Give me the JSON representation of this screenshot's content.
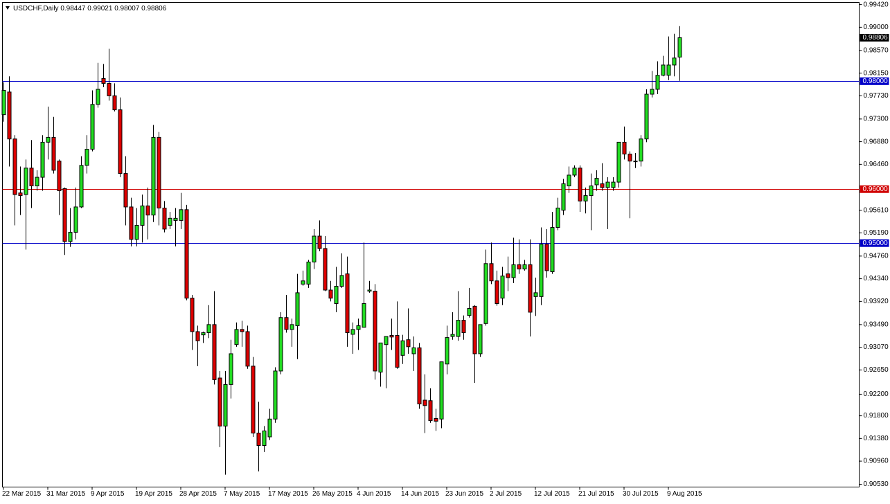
{
  "chart_data": {
    "type": "candlestick",
    "title": "USDCHF,Daily",
    "categories": [
      "22 Mar 2015",
      null,
      null,
      null,
      null,
      null,
      null,
      null,
      "31 Mar 2015",
      null,
      null,
      null,
      null,
      null,
      null,
      null,
      "9 Apr 2015",
      null,
      null,
      null,
      null,
      null,
      null,
      null,
      "19 Apr 2015",
      null,
      null,
      null,
      null,
      null,
      null,
      null,
      "28 Apr 2015",
      null,
      null,
      null,
      null,
      null,
      null,
      null,
      "7 May 2015",
      null,
      null,
      null,
      null,
      null,
      null,
      null,
      "17 May 2015",
      null,
      null,
      null,
      null,
      null,
      null,
      null,
      "26 May 2015",
      null,
      null,
      null,
      null,
      null,
      null,
      null,
      "4 Jun 2015",
      null,
      null,
      null,
      null,
      null,
      null,
      null,
      "14 Jun 2015",
      null,
      null,
      null,
      null,
      null,
      null,
      null,
      "23 Jun 2015",
      null,
      null,
      null,
      null,
      null,
      null,
      null,
      "2 Jul 2015",
      null,
      null,
      null,
      null,
      null,
      null,
      null,
      "12 Jul 2015",
      null,
      null,
      null,
      null,
      null,
      null,
      null,
      "21 Jul 2015",
      null,
      null,
      null,
      null,
      null,
      null,
      null,
      "30 Jul 2015",
      null,
      null,
      null,
      null,
      null,
      null,
      null,
      "9 Aug 2015",
      null,
      null
    ],
    "open": [
      0.9738,
      0.978,
      0.9693,
      0.9593,
      0.959,
      0.9639,
      0.9606,
      0.9622,
      0.9687,
      0.9696,
      0.9652,
      0.9601,
      0.9503,
      0.952,
      0.9567,
      0.9644,
      0.9674,
      0.9757,
      0.9805,
      0.9796,
      0.9773,
      0.9747,
      0.9629,
      0.9567,
      0.9507,
      0.9533,
      0.9569,
      0.9552,
      0.9696,
      0.9565,
      0.9533,
      0.9542,
      0.9542,
      0.9562,
      0.9398,
      0.9336,
      0.933,
      0.9334,
      0.9349,
      0.925,
      0.9161,
      0.9238,
      0.9312,
      0.934,
      0.9336,
      0.9272,
      0.9148,
      0.9125,
      0.9141,
      0.9174,
      0.9263,
      0.9362,
      0.934,
      0.9347,
      0.9424,
      0.9424,
      0.9465,
      0.9513,
      0.949,
      0.9413,
      0.9388,
      0.942,
      0.9443,
      0.9331,
      0.934,
      0.9344,
      0.9411,
      0.9411,
      0.9261,
      0.9312,
      0.9329,
      0.9329,
      0.9292,
      0.9321,
      0.9295,
      0.9306,
      0.9209,
      0.9208,
      0.9175,
      0.9174,
      0.9276,
      0.9327,
      0.9327,
      0.9357,
      0.9366,
      0.9383,
      0.9295,
      0.9351,
      0.9462,
      0.943,
      0.9398,
      0.9443,
      0.9436,
      0.946,
      0.9452,
      0.946,
      0.9401,
      0.9401,
      0.9498,
      0.9447,
      0.9529,
      0.9561,
      0.9606,
      0.9626,
      0.9639,
      0.9578,
      0.9588,
      0.9608,
      0.961,
      0.9603,
      0.9603,
      0.9613,
      0.9687,
      0.9665,
      0.9652,
      0.9652,
      0.9693,
      0.9776,
      0.9785,
      0.9811,
      0.9811,
      0.983,
      0.98447
    ],
    "high": [
      0.9798,
      0.9809,
      0.97,
      0.9642,
      0.9655,
      0.9691,
      0.9635,
      0.97,
      0.9753,
      0.9734,
      0.9655,
      0.9603,
      0.9565,
      0.9603,
      0.9661,
      0.97,
      0.9783,
      0.9834,
      0.9832,
      0.986,
      0.9796,
      0.977,
      0.9661,
      0.9584,
      0.9565,
      0.959,
      0.9603,
      0.9719,
      0.9706,
      0.9578,
      0.9558,
      0.9565,
      0.9593,
      0.9571,
      0.9404,
      0.9347,
      0.9336,
      0.9385,
      0.9411,
      0.9263,
      0.9263,
      0.9321,
      0.9353,
      0.9356,
      0.9347,
      0.9289,
      0.9206,
      0.9161,
      0.9193,
      0.927,
      0.9372,
      0.9404,
      0.936,
      0.9443,
      0.9449,
      0.9469,
      0.9526,
      0.9542,
      0.9513,
      0.943,
      0.9456,
      0.9481,
      0.9475,
      0.9353,
      0.936,
      0.9501,
      0.943,
      0.9424,
      0.9315,
      0.9327,
      0.936,
      0.9392,
      0.933,
      0.9379,
      0.9327,
      0.9315,
      0.9257,
      0.9231,
      0.9193,
      0.928,
      0.9347,
      0.9372,
      0.9411,
      0.9366,
      0.9417,
      0.9385,
      0.9349,
      0.9488,
      0.9501,
      0.9449,
      0.9456,
      0.9475,
      0.951,
      0.9507,
      0.9469,
      0.9507,
      0.9436,
      0.9529,
      0.9526,
      0.9558,
      0.9584,
      0.9619,
      0.9642,
      0.9644,
      0.9644,
      0.9603,
      0.9629,
      0.9635,
      0.9648,
      0.9622,
      0.9622,
      0.9687,
      0.9716,
      0.967,
      0.9667,
      0.97,
      0.9785,
      0.9819,
      0.9837,
      0.9847,
      0.9883,
      0.9888,
      0.99021
    ],
    "low": [
      0.9725,
      0.9642,
      0.9533,
      0.9552,
      0.9488,
      0.9565,
      0.9597,
      0.9597,
      0.9655,
      0.9629,
      0.9552,
      0.9478,
      0.9493,
      0.9507,
      0.9565,
      0.9629,
      0.967,
      0.9751,
      0.9789,
      0.9764,
      0.9744,
      0.9622,
      0.9533,
      0.9494,
      0.9494,
      0.9501,
      0.9507,
      0.9539,
      0.9533,
      0.952,
      0.9526,
      0.9494,
      0.9526,
      0.9394,
      0.9302,
      0.9272,
      0.9315,
      0.9324,
      0.9238,
      0.9122,
      0.9071,
      0.9212,
      0.9308,
      0.9308,
      0.9267,
      0.9141,
      0.9077,
      0.9113,
      0.9135,
      0.9167,
      0.9257,
      0.9334,
      0.9308,
      0.9285,
      0.9421,
      0.9417,
      0.9452,
      0.9485,
      0.9411,
      0.9392,
      0.9372,
      0.9417,
      0.9308,
      0.9295,
      0.9302,
      0.9344,
      0.9408,
      0.9247,
      0.9234,
      0.9231,
      0.9302,
      0.9267,
      0.9276,
      0.9295,
      0.9263,
      0.9193,
      0.9148,
      0.9167,
      0.9152,
      0.9157,
      0.9257,
      0.9321,
      0.9319,
      0.9321,
      0.9362,
      0.9241,
      0.9289,
      0.9347,
      0.9424,
      0.9384,
      0.9385,
      0.9411,
      0.9426,
      0.9443,
      0.9449,
      0.9327,
      0.9365,
      0.9385,
      0.9436,
      0.9443,
      0.9524,
      0.9552,
      0.9593,
      0.9622,
      0.9558,
      0.9555,
      0.9524,
      0.9597,
      0.9597,
      0.9526,
      0.9597,
      0.9603,
      0.9655,
      0.9546,
      0.9639,
      0.9642,
      0.9687,
      0.977,
      0.9776,
      0.9809,
      0.9802,
      0.9809,
      0.98007
    ],
    "close": [
      0.9783,
      0.9693,
      0.959,
      0.9588,
      0.9639,
      0.9606,
      0.9622,
      0.9687,
      0.9696,
      0.9635,
      0.9597,
      0.9503,
      0.952,
      0.9567,
      0.9644,
      0.9674,
      0.9757,
      0.9785,
      0.9796,
      0.9773,
      0.9747,
      0.9629,
      0.9567,
      0.9507,
      0.9533,
      0.9569,
      0.9552,
      0.9696,
      0.9565,
      0.9526,
      0.9546,
      0.9546,
      0.9562,
      0.9398,
      0.9336,
      0.9319,
      0.9334,
      0.9349,
      0.9247,
      0.9161,
      0.9238,
      0.9295,
      0.934,
      0.9336,
      0.9272,
      0.9148,
      0.9125,
      0.9152,
      0.9174,
      0.9263,
      0.9362,
      0.934,
      0.9349,
      0.9408,
      0.943,
      0.9465,
      0.9513,
      0.949,
      0.9413,
      0.9398,
      0.942,
      0.944,
      0.9334,
      0.934,
      0.9347,
      0.9388,
      0.9413,
      0.9263,
      0.9315,
      0.9327,
      0.9326,
      0.927,
      0.9319,
      0.9308,
      0.9306,
      0.9202,
      0.9199,
      0.9171,
      0.917,
      0.928,
      0.9325,
      0.9331,
      0.9357,
      0.9334,
      0.9379,
      0.9295,
      0.9349,
      0.9462,
      0.943,
      0.9388,
      0.9439,
      0.9436,
      0.946,
      0.9452,
      0.946,
      0.9372,
      0.9408,
      0.9498,
      0.9449,
      0.9529,
      0.9565,
      0.961,
      0.9626,
      0.9639,
      0.9578,
      0.9588,
      0.9606,
      0.962,
      0.9603,
      0.9613,
      0.9613,
      0.9687,
      0.9665,
      0.9652,
      0.9651,
      0.9693,
      0.9776,
      0.9785,
      0.9811,
      0.983,
      0.983,
      0.9843,
      0.98806
    ],
    "up_color": "#22dd22",
    "down_color": "#dd0000",
    "ylim": [
      0.9048,
      0.9946
    ],
    "yticks": [
      {
        "value": 0.9942,
        "label": "0.99420"
      },
      {
        "value": 0.99,
        "label": "0.99000"
      },
      {
        "value": 0.9857,
        "label": "0.98570"
      },
      {
        "value": 0.9815,
        "label": "0.98150"
      },
      {
        "value": 0.9773,
        "label": "0.97730"
      },
      {
        "value": 0.973,
        "label": "0.97300"
      },
      {
        "value": 0.9688,
        "label": "0.96880"
      },
      {
        "value": 0.9646,
        "label": "0.96460"
      },
      {
        "value": 0.9561,
        "label": "0.95610"
      },
      {
        "value": 0.9519,
        "label": "0.95190"
      },
      {
        "value": 0.9476,
        "label": "0.94760"
      },
      {
        "value": 0.9434,
        "label": "0.94340"
      },
      {
        "value": 0.9392,
        "label": "0.93920"
      },
      {
        "value": 0.9349,
        "label": "0.93490"
      },
      {
        "value": 0.9307,
        "label": "0.93070"
      },
      {
        "value": 0.9265,
        "label": "0.92650"
      },
      {
        "value": 0.922,
        "label": "0.92200"
      },
      {
        "value": 0.918,
        "label": "0.91800"
      },
      {
        "value": 0.9138,
        "label": "0.91380"
      },
      {
        "value": 0.9096,
        "label": "0.90960"
      },
      {
        "value": 0.9053,
        "label": "0.90530"
      }
    ],
    "levels": [
      {
        "value": 0.98,
        "label": "0.98000",
        "color": "#0000c8"
      },
      {
        "value": 0.96,
        "label": "0.96000",
        "color": "#d00000"
      },
      {
        "value": 0.95,
        "label": "0.95000",
        "color": "#0000c8"
      }
    ]
  }
}
